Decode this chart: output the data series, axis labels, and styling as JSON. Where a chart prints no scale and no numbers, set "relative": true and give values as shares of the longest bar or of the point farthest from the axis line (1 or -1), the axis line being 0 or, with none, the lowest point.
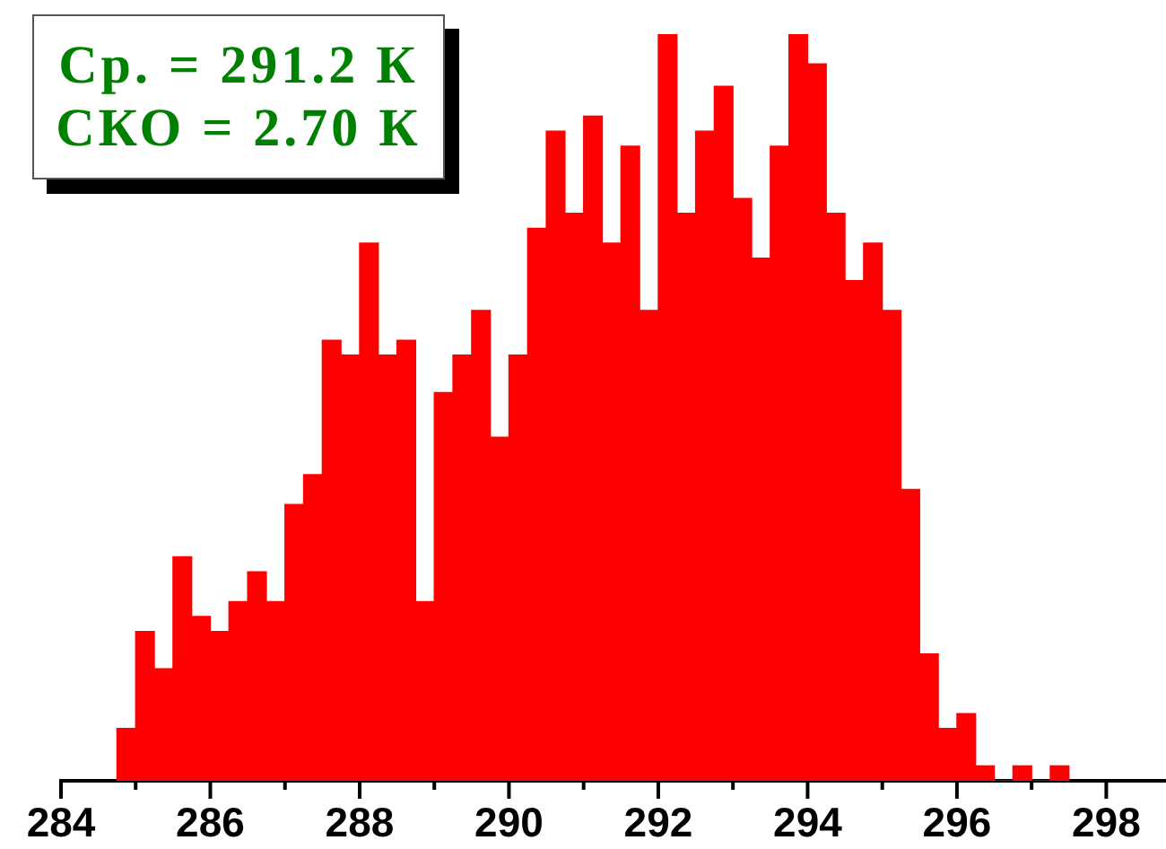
{
  "chart_data": {
    "type": "bar",
    "relative": true,
    "color": "#ff0000",
    "x": [
      284.875,
      285.125,
      285.375,
      285.625,
      285.875,
      286.125,
      286.375,
      286.625,
      286.875,
      287.125,
      287.375,
      287.625,
      287.875,
      288.125,
      288.375,
      288.625,
      288.875,
      289.125,
      289.375,
      289.625,
      289.875,
      290.125,
      290.375,
      290.625,
      290.875,
      291.125,
      291.375,
      291.625,
      291.875,
      292.125,
      292.375,
      292.625,
      292.875,
      293.125,
      293.375,
      293.625,
      293.875,
      294.125,
      294.375,
      294.625,
      294.875,
      295.125,
      295.375,
      295.625,
      295.875,
      296.125,
      296.375,
      296.625,
      296.875,
      297.125,
      297.375
    ],
    "values": [
      0.07,
      0.2,
      0.15,
      0.3,
      0.22,
      0.2,
      0.24,
      0.28,
      0.24,
      0.37,
      0.41,
      0.59,
      0.57,
      0.72,
      0.57,
      0.59,
      0.24,
      0.52,
      0.57,
      0.63,
      0.46,
      0.57,
      0.74,
      0.87,
      0.76,
      0.89,
      0.72,
      0.85,
      0.63,
      1,
      0.76,
      0.87,
      0.93,
      0.78,
      0.7,
      0.85,
      1,
      0.96,
      0.76,
      0.67,
      0.72,
      0.63,
      0.39,
      0.17,
      0.07,
      0.09,
      0.02,
      0,
      0.02,
      0,
      0.02
    ],
    "xlim": [
      284,
      298.8
    ],
    "xticks": [
      284,
      {
        "value": 285,
        "label": null
      },
      286,
      {
        "value": 287,
        "label": null
      },
      288,
      {
        "value": 289,
        "label": null
      },
      290,
      {
        "value": 291,
        "label": null
      },
      292,
      {
        "value": 293,
        "label": null
      },
      294,
      {
        "value": 295,
        "label": null
      },
      296,
      {
        "value": 297,
        "label": null
      },
      298
    ],
    "annotations": [
      "Ср. = 291.2 К",
      "СКО = 2.70 К"
    ]
  }
}
